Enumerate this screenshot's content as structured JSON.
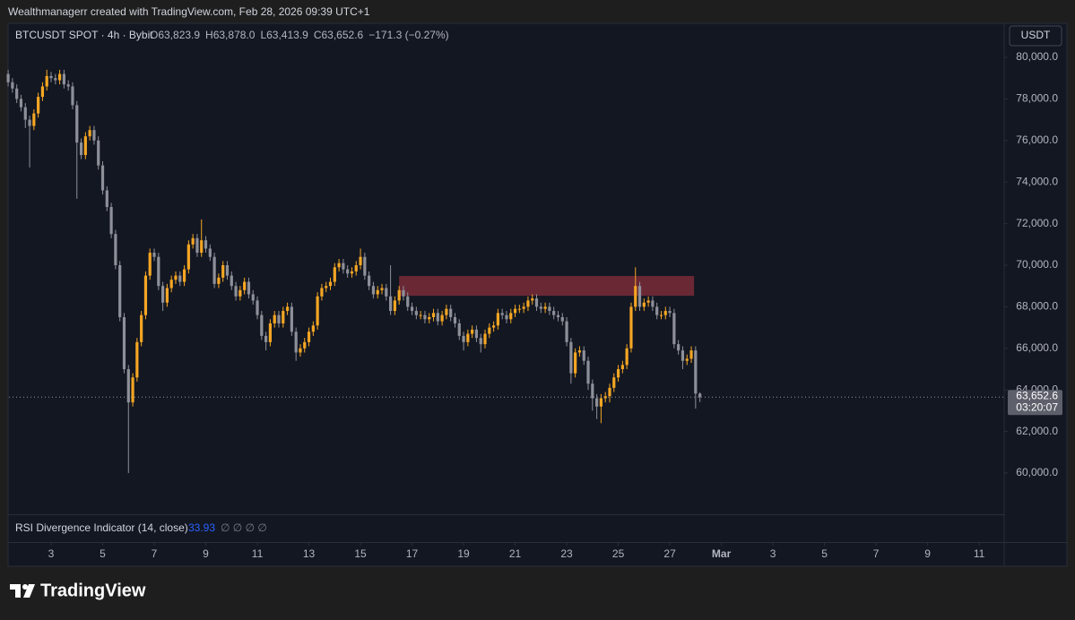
{
  "caption": "Wealthmanagerr created with TradingView.com, Feb 28, 2026 09:39 UTC+1",
  "brand": "TradingView",
  "chart_data": {
    "type": "candlestick",
    "symbol": "BTCUSDT SPOT · 4h · Bybit",
    "ohlc_text": [
      "O63,823.9",
      "H63,878.0",
      "L63,413.9",
      "C63,652.6",
      "−171.3 (−0.27%)"
    ],
    "currency": "USDT",
    "last_price_label": "63,652.6",
    "countdown": "03:20:07",
    "up_color": "#f5a623",
    "down_color": "#8e9099",
    "grid": false,
    "xlim": [
      1.365,
      39.97
    ],
    "xticks": [
      3,
      5,
      7,
      9,
      11,
      13,
      15,
      17,
      19,
      21,
      23,
      25,
      27,
      {
        "value": 29,
        "label": "Mar"
      },
      {
        "value": 31,
        "label": "3"
      },
      {
        "value": 33,
        "label": "5"
      },
      {
        "value": 35,
        "label": "7"
      },
      {
        "value": 37,
        "label": "9"
      },
      {
        "value": 39,
        "label": "11"
      }
    ],
    "ylim": [
      58017,
      81638
    ],
    "yticks": [
      {
        "value": 60000,
        "label": "60,000.0"
      },
      {
        "value": 62000,
        "label": "62,000.0"
      },
      {
        "value": 64000,
        "label": "64,000.0"
      },
      {
        "value": 66000,
        "label": "66,000.0"
      },
      {
        "value": 68000,
        "label": "68,000.0"
      },
      {
        "value": 70000,
        "label": "70,000.0"
      },
      {
        "value": 72000,
        "label": "72,000.0"
      },
      {
        "value": 74000,
        "label": "74,000.0"
      },
      {
        "value": 76000,
        "label": "76,000.0"
      },
      {
        "value": 78000,
        "label": "78,000.0"
      },
      {
        "value": 80000,
        "label": "80,000.0"
      }
    ],
    "zones": [
      {
        "x0": 16.5,
        "x1": 27.94,
        "y0": 68530,
        "y1": 69480,
        "color": "#7a2c38"
      }
    ],
    "x": [
      1.333,
      1.5,
      1.667,
      1.833,
      2,
      2.167,
      2.333,
      2.5,
      2.667,
      2.833,
      3,
      3.167,
      3.333,
      3.5,
      3.667,
      3.833,
      4,
      4.167,
      4.333,
      4.5,
      4.667,
      4.833,
      5,
      5.167,
      5.333,
      5.5,
      5.667,
      5.833,
      6,
      6.167,
      6.333,
      6.5,
      6.667,
      6.833,
      7,
      7.167,
      7.333,
      7.5,
      7.667,
      7.833,
      8,
      8.167,
      8.333,
      8.5,
      8.667,
      8.833,
      9,
      9.167,
      9.333,
      9.5,
      9.667,
      9.833,
      10,
      10.167,
      10.333,
      10.5,
      10.667,
      10.833,
      11,
      11.167,
      11.333,
      11.5,
      11.667,
      11.833,
      12,
      12.167,
      12.333,
      12.5,
      12.667,
      12.833,
      13,
      13.167,
      13.333,
      13.5,
      13.667,
      13.833,
      14,
      14.167,
      14.333,
      14.5,
      14.667,
      14.833,
      15,
      15.167,
      15.333,
      15.5,
      15.667,
      15.833,
      16,
      16.167,
      16.333,
      16.5,
      16.667,
      16.833,
      17,
      17.167,
      17.333,
      17.5,
      17.667,
      17.833,
      18,
      18.167,
      18.333,
      18.5,
      18.667,
      18.833,
      19,
      19.167,
      19.333,
      19.5,
      19.667,
      19.833,
      20,
      20.167,
      20.333,
      20.5,
      20.667,
      20.833,
      21,
      21.167,
      21.333,
      21.5,
      21.667,
      21.833,
      22,
      22.167,
      22.333,
      22.5,
      22.667,
      22.833,
      23,
      23.167,
      23.333,
      23.5,
      23.667,
      23.833,
      24,
      24.167,
      24.333,
      24.5,
      24.667,
      24.833,
      25,
      25.167,
      25.333,
      25.5,
      25.667,
      25.833,
      26,
      26.167,
      26.333,
      26.5,
      26.667,
      26.833,
      27,
      27.167,
      27.333,
      27.5,
      27.667,
      27.833,
      28,
      28.167
    ],
    "open": [
      79200,
      78800,
      78500,
      78000,
      77600,
      77000,
      76700,
      77300,
      78100,
      78600,
      79100,
      79000,
      78900,
      79200,
      78700,
      78600,
      77700,
      75900,
      75300,
      76200,
      76500,
      76000,
      74800,
      73600,
      72800,
      71500,
      70000,
      67500,
      65000,
      63400,
      64600,
      66300,
      67600,
      69500,
      70600,
      70400,
      69000,
      68200,
      68900,
      69300,
      69500,
      69200,
      69800,
      71000,
      71300,
      70600,
      71200,
      70800,
      70400,
      69100,
      69400,
      70000,
      69500,
      69000,
      68500,
      68800,
      69200,
      68600,
      68300,
      67600,
      66600,
      66300,
      67200,
      67600,
      67200,
      67800,
      68000,
      66800,
      65800,
      66000,
      66300,
      66800,
      67100,
      68500,
      68900,
      69000,
      69200,
      69900,
      70100,
      69800,
      69600,
      69700,
      70000,
      70400,
      69500,
      69000,
      68600,
      68800,
      68900,
      68500,
      67800,
      68300,
      68800,
      68500,
      68000,
      67800,
      67600,
      67600,
      67400,
      67500,
      67700,
      67300,
      67600,
      67900,
      67500,
      67200,
      66600,
      66300,
      66700,
      66900,
      66500,
      66200,
      66700,
      67000,
      67100,
      67700,
      67600,
      67400,
      67700,
      67900,
      67900,
      68000,
      68300,
      68400,
      68000,
      67900,
      68000,
      67800,
      67600,
      67500,
      67300,
      66300,
      64800,
      65800,
      65900,
      65400,
      64300,
      63600,
      63200,
      63600,
      63700,
      64100,
      64600,
      65000,
      65200,
      66000,
      68000,
      69000,
      68000,
      68200,
      68300,
      68000,
      67600,
      67600,
      67800,
      67700,
      66200,
      65900,
      65400,
      65500,
      65900,
      63823.9
    ],
    "high": [
      79400,
      79000,
      78700,
      78200,
      77800,
      77200,
      77500,
      78300,
      78800,
      79400,
      79300,
      79200,
      79400,
      79400,
      78900,
      78800,
      77900,
      76100,
      76400,
      76700,
      76700,
      76200,
      75000,
      73800,
      73000,
      71700,
      70200,
      67700,
      65200,
      64800,
      66500,
      67800,
      69700,
      70800,
      70800,
      70600,
      69200,
      69100,
      69500,
      69700,
      69700,
      70000,
      71200,
      71500,
      71500,
      72200,
      71400,
      71000,
      70600,
      69600,
      70200,
      70200,
      69700,
      69200,
      69000,
      69400,
      69400,
      68800,
      68500,
      67800,
      66800,
      67400,
      67800,
      67800,
      68000,
      68200,
      68200,
      67000,
      66200,
      66500,
      67000,
      67300,
      68700,
      69100,
      69200,
      69400,
      70100,
      70300,
      70300,
      70000,
      69900,
      70200,
      70800,
      70600,
      69700,
      69200,
      69000,
      69100,
      69100,
      70000,
      68500,
      69000,
      69000,
      68700,
      68200,
      68000,
      67800,
      67800,
      67700,
      67900,
      67900,
      67800,
      68100,
      68100,
      67700,
      67400,
      66800,
      66900,
      67100,
      67100,
      66700,
      66900,
      67200,
      67300,
      67900,
      67900,
      67800,
      67900,
      68100,
      68100,
      68200,
      68500,
      68600,
      68600,
      68200,
      68200,
      68200,
      68000,
      67800,
      67700,
      67500,
      66500,
      66000,
      66100,
      66100,
      65600,
      64500,
      63800,
      63800,
      63900,
      64300,
      64800,
      65200,
      65400,
      66200,
      68200,
      69900,
      69200,
      68400,
      68500,
      68500,
      68200,
      67800,
      68000,
      68000,
      67900,
      66400,
      66100,
      65700,
      66100,
      66100,
      63878.0
    ],
    "low": [
      78600,
      78300,
      77800,
      77400,
      76600,
      74700,
      76500,
      77100,
      77900,
      78400,
      78800,
      78700,
      78700,
      78500,
      78400,
      77500,
      73200,
      75100,
      75100,
      76000,
      75800,
      74600,
      73400,
      72600,
      71300,
      69800,
      67300,
      64800,
      60000,
      63200,
      64400,
      66100,
      67400,
      69300,
      70200,
      68800,
      67800,
      68000,
      68700,
      69100,
      69000,
      69000,
      69600,
      70800,
      70400,
      70400,
      70600,
      70200,
      68900,
      68900,
      69200,
      69300,
      68800,
      68300,
      68300,
      68600,
      68400,
      68100,
      67400,
      66400,
      65900,
      66100,
      67000,
      67000,
      67000,
      67600,
      66600,
      65400,
      65600,
      65800,
      66100,
      66600,
      66900,
      68300,
      68700,
      68800,
      69000,
      69700,
      69600,
      69400,
      69400,
      69500,
      69800,
      69300,
      68800,
      68400,
      68400,
      68600,
      68300,
      67600,
      67600,
      68100,
      68300,
      67800,
      67600,
      67400,
      67400,
      67200,
      67200,
      67300,
      67100,
      67100,
      67400,
      67300,
      67000,
      66400,
      65900,
      66100,
      66500,
      66300,
      65800,
      66000,
      66500,
      66800,
      66900,
      67400,
      67200,
      67200,
      67500,
      67700,
      67700,
      67800,
      68100,
      67800,
      67700,
      67700,
      67600,
      67400,
      67300,
      67100,
      66100,
      64300,
      64600,
      65600,
      65200,
      64000,
      63000,
      62600,
      62400,
      63400,
      63400,
      63900,
      64400,
      64800,
      65000,
      65800,
      67800,
      67800,
      67800,
      68000,
      67800,
      67400,
      67400,
      67400,
      67500,
      66000,
      65700,
      65000,
      65200,
      65300,
      63100,
      63413.9
    ],
    "close": [
      78800,
      78500,
      78000,
      77600,
      77000,
      76700,
      77300,
      78100,
      78600,
      79100,
      79000,
      78900,
      79200,
      78700,
      78600,
      77700,
      75900,
      75300,
      76200,
      76500,
      76000,
      74800,
      73600,
      72800,
      71500,
      70000,
      67500,
      65000,
      63400,
      64600,
      66300,
      67600,
      69500,
      70600,
      70400,
      69000,
      68200,
      68900,
      69300,
      69500,
      69200,
      69800,
      71000,
      71300,
      70600,
      71200,
      70800,
      70400,
      69100,
      69400,
      70000,
      69500,
      69000,
      68500,
      68800,
      69200,
      68600,
      68300,
      67600,
      66600,
      66300,
      67200,
      67600,
      67200,
      67800,
      68000,
      66800,
      65800,
      66000,
      66300,
      66800,
      67100,
      68500,
      68900,
      69000,
      69200,
      69900,
      70100,
      69800,
      69600,
      69700,
      70000,
      70400,
      69500,
      69000,
      68600,
      68800,
      68900,
      68500,
      67800,
      68300,
      68800,
      68500,
      68000,
      67800,
      67600,
      67600,
      67400,
      67500,
      67700,
      67300,
      67600,
      67900,
      67500,
      67200,
      66600,
      66300,
      66700,
      66900,
      66500,
      66200,
      66700,
      67000,
      67100,
      67700,
      67600,
      67400,
      67700,
      67900,
      67900,
      68000,
      68300,
      68400,
      68000,
      67900,
      68000,
      67800,
      67600,
      67500,
      67300,
      66300,
      64800,
      65800,
      65900,
      65400,
      64300,
      63600,
      63200,
      63600,
      63700,
      64100,
      64600,
      65000,
      65200,
      66000,
      68000,
      69000,
      68000,
      68200,
      68300,
      68000,
      67600,
      67600,
      67800,
      67700,
      66200,
      65900,
      65400,
      65500,
      65900,
      63823.9,
      63652.6
    ],
    "rsi": {
      "title": "RSI Divergence Indicator (14, close)",
      "value": 33.93,
      "flags": "∅ ∅ ∅ ∅"
    }
  }
}
